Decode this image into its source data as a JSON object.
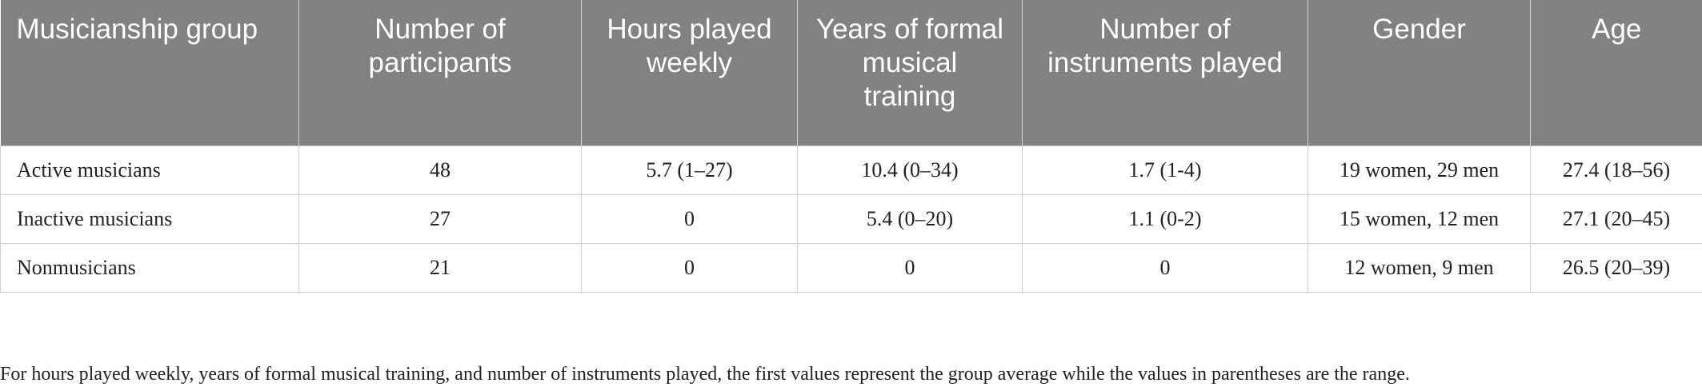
{
  "table": {
    "headers": [
      "Musicianship group",
      "Number of participants",
      "Hours played weekly",
      "Years of formal musical training",
      "Number of instruments played",
      "Gender",
      "Age"
    ],
    "rows": [
      [
        "Active musicians",
        "48",
        "5.7 (1–27)",
        "10.4 (0–34)",
        "1.7 (1-4)",
        "19 women, 29 men",
        "27.4 (18–56)"
      ],
      [
        "Inactive musicians",
        "27",
        "0",
        "5.4 (0–20)",
        "1.1 (0-2)",
        "15 women, 12 men",
        "27.1 (20–45)"
      ],
      [
        "Nonmusicians",
        "21",
        "0",
        "0",
        "0",
        "12 women, 9 men",
        "26.5 (20–39)"
      ]
    ]
  },
  "footnote": "For hours played weekly, years of formal musical training, and number of instruments played, the first values represent the group average while the values in parentheses are the range.",
  "colors": {
    "header_background": "#818281",
    "header_text": "#ffffff",
    "body_text": "#222222",
    "grid": "#cfcfcf"
  }
}
